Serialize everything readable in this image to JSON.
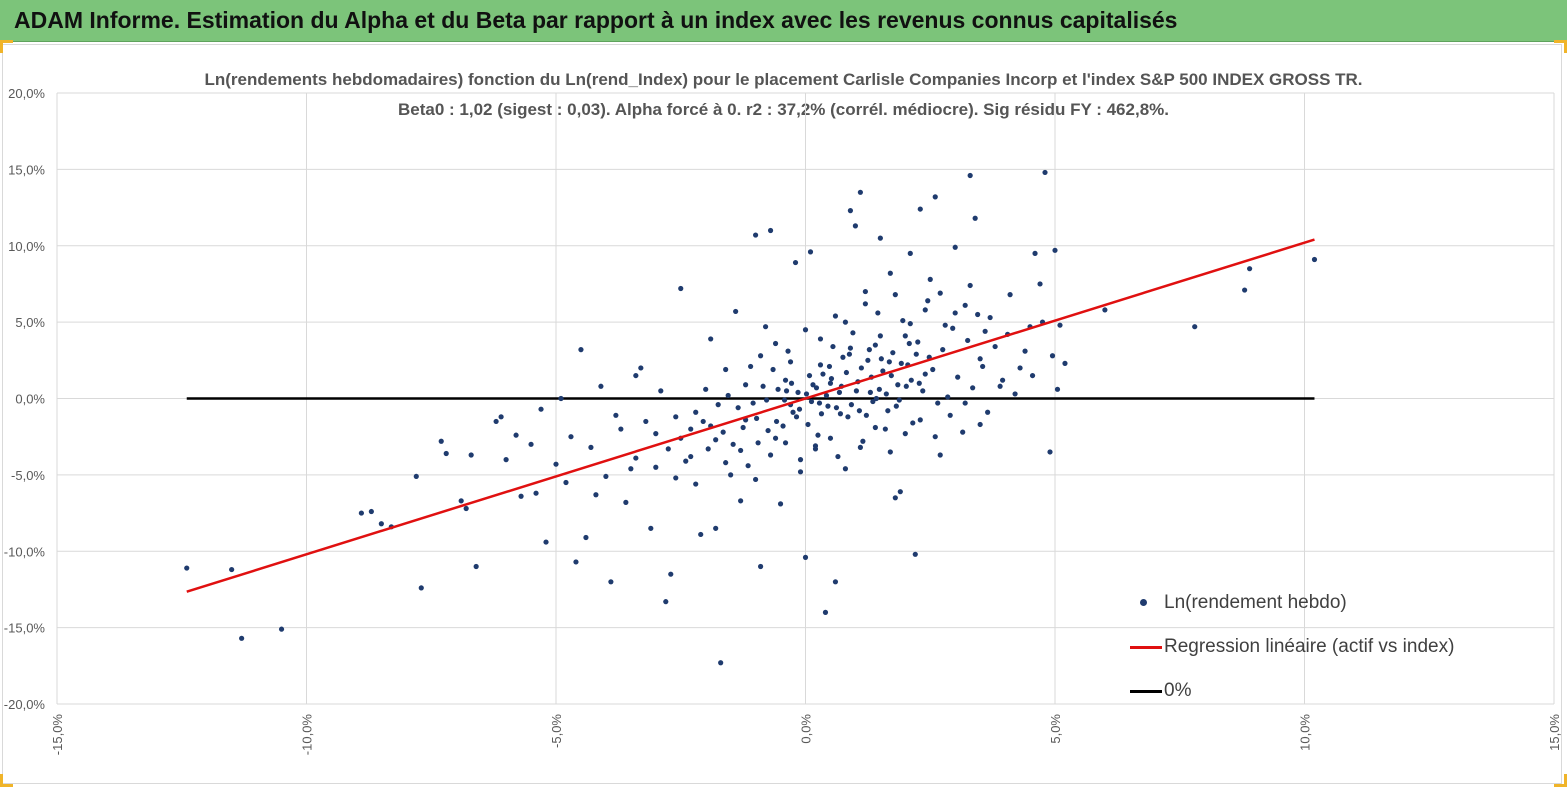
{
  "header": {
    "title": "ADAM Informe. Estimation du Alpha et du Beta par rapport à un index avec les revenus connus capitalisés"
  },
  "chart_data": {
    "type": "scatter",
    "title": "Ln(rendements hebdomadaires) fonction du Ln(rend_Index) pour le placement Carlisle Companies Incorp et l'index S&P 500 INDEX GROSS TR.",
    "subtitle": "Beta0 : 1,02  (sigest : 0,03). Alpha forcé à 0. r2 : 37,2% (corrél. médiocre). Sig résidu FY : 462,8%.",
    "xlabel": "",
    "ylabel": "",
    "xlim": [
      -15,
      15
    ],
    "ylim": [
      -20,
      20
    ],
    "x_ticks": [
      -15,
      -10,
      -5,
      0,
      5,
      10,
      15
    ],
    "y_ticks": [
      20,
      15,
      10,
      5,
      0,
      -5,
      -10,
      -15,
      -20
    ],
    "x_tick_labels": [
      "-15,0%",
      "-10,0%",
      "-5,0%",
      "0,0%",
      "5,0%",
      "10,0%",
      "15,0%"
    ],
    "y_tick_labels": [
      "20,0%",
      "15,0%",
      "10,0%",
      "5,0%",
      "0,0%",
      "-5,0%",
      "-10,0%",
      "-15,0%",
      "-20,0%"
    ],
    "grid": true,
    "legend_position": "bottom-right",
    "colors": {
      "points": "#1f3b6e",
      "regression": "#e01010",
      "zero": "#000000",
      "grid": "#d9d9d9",
      "banner": "#7cc47a"
    },
    "beta": 1.02,
    "regression_x_range": [
      -12.4,
      10.2
    ],
    "zero_line_x_range": [
      -12.4,
      10.2
    ],
    "series": [
      {
        "name": "Ln(rendement hebdo)",
        "kind": "points",
        "points": [
          [
            -12.4,
            -11.1
          ],
          [
            -11.5,
            -11.2
          ],
          [
            -11.3,
            -15.7
          ],
          [
            -10.5,
            -15.1
          ],
          [
            -8.9,
            -7.5
          ],
          [
            -8.7,
            -7.4
          ],
          [
            -8.5,
            -8.2
          ],
          [
            -8.3,
            -8.4
          ],
          [
            -7.8,
            -5.1
          ],
          [
            -7.7,
            -12.4
          ],
          [
            -7.3,
            -2.8
          ],
          [
            -7.2,
            -3.6
          ],
          [
            -6.9,
            -6.7
          ],
          [
            -6.8,
            -7.2
          ],
          [
            -6.7,
            -3.7
          ],
          [
            -6.6,
            -11.0
          ],
          [
            -6.2,
            -1.5
          ],
          [
            -6.1,
            -1.2
          ],
          [
            -6.0,
            -4.0
          ],
          [
            -5.8,
            -2.4
          ],
          [
            -5.7,
            -6.4
          ],
          [
            -5.5,
            -3.0
          ],
          [
            -5.4,
            -6.2
          ],
          [
            -5.3,
            -0.7
          ],
          [
            -5.2,
            -9.4
          ],
          [
            -5.0,
            -4.3
          ],
          [
            -4.9,
            0.0
          ],
          [
            -4.8,
            -5.5
          ],
          [
            -4.7,
            -2.5
          ],
          [
            -4.6,
            -10.7
          ],
          [
            -4.5,
            3.2
          ],
          [
            -4.4,
            -9.1
          ],
          [
            -4.2,
            -6.3
          ],
          [
            -4.1,
            0.8
          ],
          [
            -3.9,
            -12.0
          ],
          [
            -3.8,
            -1.1
          ],
          [
            -3.5,
            -4.6
          ],
          [
            -3.4,
            1.5
          ],
          [
            -3.3,
            2.0
          ],
          [
            -3.1,
            -8.5
          ],
          [
            -3.0,
            -2.3
          ],
          [
            -2.9,
            0.5
          ],
          [
            -2.8,
            -13.3
          ],
          [
            -2.7,
            -11.5
          ],
          [
            -2.6,
            -5.2
          ],
          [
            -2.5,
            7.2
          ],
          [
            -2.3,
            -3.8
          ],
          [
            -2.1,
            -8.9
          ],
          [
            -2.0,
            0.6
          ],
          [
            -1.9,
            3.9
          ],
          [
            -1.8,
            -8.5
          ],
          [
            -1.7,
            -17.3
          ],
          [
            -1.6,
            1.9
          ],
          [
            -1.5,
            -5.0
          ],
          [
            -1.4,
            5.7
          ],
          [
            -1.3,
            -6.7
          ],
          [
            -1.2,
            -1.4
          ],
          [
            -1.1,
            2.1
          ],
          [
            -1.0,
            10.7
          ],
          [
            -0.9,
            -11.0
          ],
          [
            -0.8,
            4.7
          ],
          [
            -0.7,
            11.0
          ],
          [
            -0.6,
            -2.6
          ],
          [
            -0.5,
            -6.9
          ],
          [
            -0.4,
            1.2
          ],
          [
            -0.3,
            -0.4
          ],
          [
            -0.2,
            8.9
          ],
          [
            -0.1,
            -4.8
          ],
          [
            0.0,
            -10.4
          ],
          [
            0.1,
            9.6
          ],
          [
            0.2,
            -3.1
          ],
          [
            0.3,
            2.2
          ],
          [
            0.4,
            -14.0
          ],
          [
            0.5,
            1.0
          ],
          [
            0.6,
            -12.0
          ],
          [
            0.7,
            -1.0
          ],
          [
            0.8,
            5.0
          ],
          [
            0.9,
            12.3
          ],
          [
            1.0,
            11.3
          ],
          [
            1.1,
            13.5
          ],
          [
            1.2,
            7.0
          ],
          [
            1.3,
            0.4
          ],
          [
            1.4,
            3.5
          ],
          [
            1.5,
            10.5
          ],
          [
            1.6,
            -2.0
          ],
          [
            1.7,
            8.2
          ],
          [
            1.8,
            -6.5
          ],
          [
            1.9,
            -6.1
          ],
          [
            2.0,
            4.1
          ],
          [
            2.1,
            9.5
          ],
          [
            2.2,
            -10.2
          ],
          [
            2.3,
            12.4
          ],
          [
            2.4,
            1.6
          ],
          [
            2.5,
            7.8
          ],
          [
            2.6,
            13.2
          ],
          [
            2.7,
            -3.7
          ],
          [
            2.8,
            4.8
          ],
          [
            3.0,
            9.9
          ],
          [
            3.2,
            6.1
          ],
          [
            3.3,
            14.6
          ],
          [
            3.4,
            11.8
          ],
          [
            3.5,
            2.6
          ],
          [
            3.7,
            5.3
          ],
          [
            3.9,
            0.8
          ],
          [
            4.1,
            6.8
          ],
          [
            4.3,
            2.0
          ],
          [
            4.5,
            4.7
          ],
          [
            4.6,
            9.5
          ],
          [
            4.7,
            7.5
          ],
          [
            4.8,
            14.8
          ],
          [
            4.9,
            -3.5
          ],
          [
            5.0,
            9.7
          ],
          [
            5.1,
            4.8
          ],
          [
            5.2,
            2.3
          ],
          [
            6.0,
            5.8
          ],
          [
            7.8,
            4.7
          ],
          [
            8.8,
            7.1
          ],
          [
            8.9,
            8.5
          ],
          [
            10.2,
            9.1
          ],
          [
            -4.3,
            -3.2
          ],
          [
            -4.0,
            -5.1
          ],
          [
            -3.7,
            -2.0
          ],
          [
            -3.6,
            -6.8
          ],
          [
            -3.2,
            -1.5
          ],
          [
            -2.4,
            -4.1
          ],
          [
            -2.2,
            -0.9
          ],
          [
            -1.95,
            -3.3
          ],
          [
            -1.65,
            -2.2
          ],
          [
            -1.35,
            -0.6
          ],
          [
            -1.15,
            -4.4
          ],
          [
            -0.95,
            -2.9
          ],
          [
            -0.85,
            0.8
          ],
          [
            -0.65,
            1.9
          ],
          [
            -0.45,
            -1.8
          ],
          [
            -0.35,
            3.1
          ],
          [
            -0.25,
            -0.9
          ],
          [
            -0.15,
            0.4
          ],
          [
            0.05,
            -1.7
          ],
          [
            0.15,
            0.9
          ],
          [
            0.25,
            -2.4
          ],
          [
            0.35,
            1.6
          ],
          [
            0.45,
            -0.5
          ],
          [
            0.55,
            3.4
          ],
          [
            0.65,
            -3.8
          ],
          [
            0.75,
            2.7
          ],
          [
            0.85,
            -1.2
          ],
          [
            0.95,
            4.3
          ],
          [
            1.05,
            1.1
          ],
          [
            1.15,
            -2.8
          ],
          [
            1.25,
            2.5
          ],
          [
            1.35,
            -0.2
          ],
          [
            1.45,
            5.6
          ],
          [
            1.55,
            1.8
          ],
          [
            1.65,
            -0.8
          ],
          [
            1.75,
            3.0
          ],
          [
            1.85,
            0.9
          ],
          [
            1.95,
            5.1
          ],
          [
            2.05,
            2.2
          ],
          [
            2.15,
            -1.6
          ],
          [
            2.25,
            3.7
          ],
          [
            2.35,
            0.5
          ],
          [
            2.45,
            6.4
          ],
          [
            2.55,
            1.9
          ],
          [
            2.65,
            -0.3
          ],
          [
            2.75,
            3.2
          ],
          [
            2.85,
            0.1
          ],
          [
            2.95,
            4.6
          ],
          [
            3.05,
            1.4
          ],
          [
            3.15,
            -2.2
          ],
          [
            3.25,
            3.8
          ],
          [
            3.35,
            0.7
          ],
          [
            3.45,
            5.5
          ],
          [
            3.55,
            2.1
          ],
          [
            3.65,
            -0.9
          ],
          [
            3.8,
            3.4
          ],
          [
            3.95,
            1.2
          ],
          [
            4.05,
            4.2
          ],
          [
            4.2,
            0.3
          ],
          [
            4.4,
            3.1
          ],
          [
            4.55,
            1.5
          ],
          [
            4.75,
            5.0
          ],
          [
            4.95,
            2.8
          ],
          [
            5.05,
            0.6
          ],
          [
            -1.8,
            -2.7
          ],
          [
            -1.55,
            0.2
          ],
          [
            -1.25,
            -1.9
          ],
          [
            -1.05,
            -0.3
          ],
          [
            -0.75,
            -2.1
          ],
          [
            -0.55,
            0.6
          ],
          [
            -0.42,
            -0.1
          ],
          [
            -0.28,
            1.0
          ],
          [
            -0.12,
            -0.7
          ],
          [
            0.02,
            0.3
          ],
          [
            0.12,
            -0.2
          ],
          [
            0.22,
            0.7
          ],
          [
            0.32,
            -1.0
          ],
          [
            0.42,
            0.2
          ],
          [
            0.52,
            1.3
          ],
          [
            0.62,
            -0.6
          ],
          [
            0.72,
            0.8
          ],
          [
            0.82,
            1.7
          ],
          [
            0.92,
            -0.4
          ],
          [
            1.02,
            0.5
          ],
          [
            1.12,
            2.0
          ],
          [
            1.22,
            -1.1
          ],
          [
            1.32,
            1.4
          ],
          [
            1.42,
            0.0
          ],
          [
            1.52,
            2.6
          ],
          [
            1.62,
            0.3
          ],
          [
            1.72,
            1.5
          ],
          [
            1.82,
            -0.5
          ],
          [
            1.92,
            2.3
          ],
          [
            2.02,
            0.8
          ],
          [
            2.12,
            1.2
          ],
          [
            2.22,
            2.9
          ],
          [
            -2.6,
            -1.2
          ],
          [
            -2.3,
            -2.0
          ],
          [
            -2.05,
            -1.5
          ],
          [
            -1.75,
            -0.4
          ],
          [
            -1.45,
            -3.0
          ],
          [
            -1.2,
            0.9
          ],
          [
            -0.98,
            -1.3
          ],
          [
            -0.78,
            -0.1
          ],
          [
            -0.58,
            -1.5
          ],
          [
            -0.38,
            0.5
          ],
          [
            -0.18,
            -1.2
          ],
          [
            0.08,
            1.5
          ],
          [
            0.28,
            -0.3
          ],
          [
            0.48,
            2.1
          ],
          [
            0.68,
            0.4
          ],
          [
            0.88,
            2.9
          ],
          [
            1.08,
            -0.8
          ],
          [
            1.28,
            3.2
          ],
          [
            1.48,
            0.6
          ],
          [
            1.68,
            2.4
          ],
          [
            1.88,
            -0.1
          ],
          [
            2.08,
            3.6
          ],
          [
            2.28,
            1.0
          ],
          [
            2.48,
            2.7
          ],
          [
            -3.4,
            -3.9
          ],
          [
            -3.0,
            -4.5
          ],
          [
            -2.75,
            -3.3
          ],
          [
            -2.5,
            -2.6
          ],
          [
            -2.2,
            -5.6
          ],
          [
            -1.9,
            -1.8
          ],
          [
            -1.6,
            -4.2
          ],
          [
            -1.3,
            -3.4
          ],
          [
            -1.0,
            -5.3
          ],
          [
            -0.7,
            -3.7
          ],
          [
            -0.4,
            -2.9
          ],
          [
            -0.1,
            -4.0
          ],
          [
            0.2,
            -3.3
          ],
          [
            0.5,
            -2.6
          ],
          [
            0.8,
            -4.6
          ],
          [
            1.1,
            -3.2
          ],
          [
            1.4,
            -1.9
          ],
          [
            1.7,
            -3.5
          ],
          [
            2.0,
            -2.3
          ],
          [
            2.3,
            -1.4
          ],
          [
            2.6,
            -2.5
          ],
          [
            2.9,
            -1.1
          ],
          [
            3.2,
            -0.3
          ],
          [
            3.5,
            -1.7
          ],
          [
            -0.9,
            2.8
          ],
          [
            -0.6,
            3.6
          ],
          [
            -0.3,
            2.4
          ],
          [
            0.0,
            4.5
          ],
          [
            0.3,
            3.9
          ],
          [
            0.6,
            5.4
          ],
          [
            0.9,
            3.3
          ],
          [
            1.2,
            6.2
          ],
          [
            1.5,
            4.1
          ],
          [
            1.8,
            6.8
          ],
          [
            2.1,
            4.9
          ],
          [
            2.4,
            5.8
          ],
          [
            2.7,
            6.9
          ],
          [
            3.0,
            5.6
          ],
          [
            3.3,
            7.4
          ],
          [
            3.6,
            4.4
          ]
        ]
      },
      {
        "name": "Regression linéaire (actif vs index)",
        "kind": "line"
      },
      {
        "name": "0%",
        "kind": "line"
      }
    ]
  }
}
